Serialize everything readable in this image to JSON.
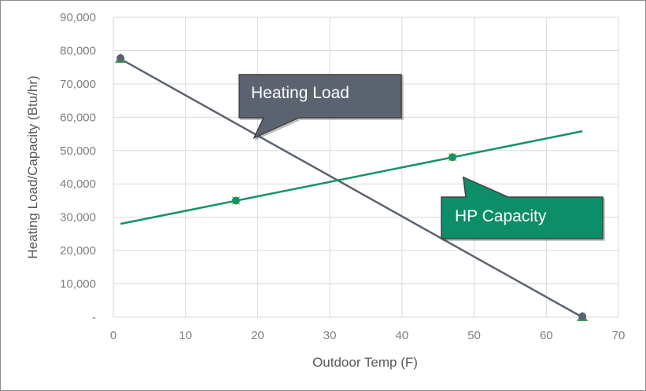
{
  "chart_data": {
    "type": "line",
    "title": "",
    "xlabel": "Outdoor Temp (F)",
    "ylabel": "Heating Load/Capacity (Btu/hr)",
    "xlim": [
      0,
      70
    ],
    "ylim": [
      0,
      90000
    ],
    "x_ticks": [
      0,
      10,
      20,
      30,
      40,
      50,
      60,
      70
    ],
    "x_tick_labels": [
      "0",
      "10",
      "20",
      "30",
      "40",
      "50",
      "60",
      "70"
    ],
    "y_ticks": [
      0,
      10000,
      20000,
      30000,
      40000,
      50000,
      60000,
      70000,
      80000,
      90000
    ],
    "y_tick_labels": [
      "-",
      "10,000",
      "20,000",
      "30,000",
      "40,000",
      "50,000",
      "60,000",
      "70,000",
      "80,000",
      "90,000"
    ],
    "grid": true,
    "series": [
      {
        "name": "Heating Load",
        "color": "#5c6370",
        "line": [
          {
            "x": 1,
            "y": 77500
          },
          {
            "x": 65,
            "y": 0
          }
        ],
        "markers": [
          {
            "x": 1,
            "y": 77500
          },
          {
            "x": 65,
            "y": 0
          }
        ]
      },
      {
        "name": "HP Capacity",
        "color": "#13926b",
        "line": [
          {
            "x": 1,
            "y": 28000
          },
          {
            "x": 65,
            "y": 55800
          }
        ],
        "markers": [
          {
            "x": 17,
            "y": 35000
          },
          {
            "x": 47,
            "y": 48000
          }
        ]
      }
    ],
    "annotations": [
      {
        "text": "Heating Load",
        "series": "Heating Load",
        "color": "#5c6370",
        "points_to": {
          "x": 19.5,
          "y": 53800
        }
      },
      {
        "text": "HP Capacity",
        "series": "HP Capacity",
        "color": "#0e8e68",
        "points_to": {
          "x": 48.5,
          "y": 42000
        }
      }
    ]
  }
}
